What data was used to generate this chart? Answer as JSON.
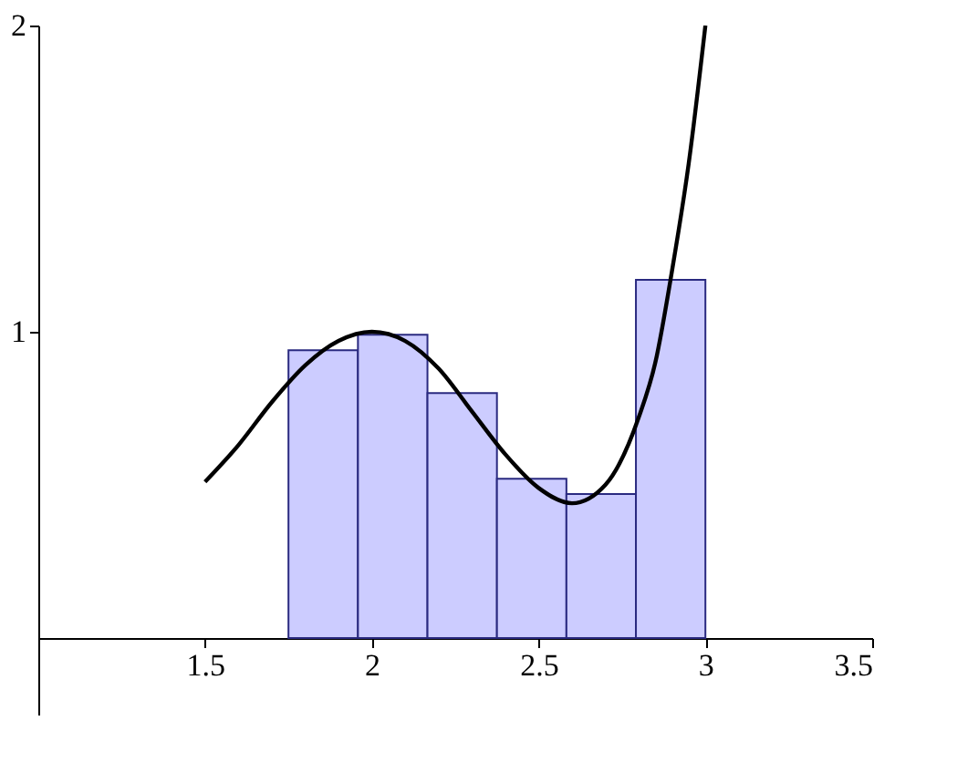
{
  "chart_data": {
    "type": "histogram",
    "bins": [
      1.75,
      1.9583,
      2.1667,
      2.375,
      2.5833,
      2.7917,
      3.0
    ],
    "values": [
      0.94,
      0.99,
      0.8,
      0.52,
      0.47,
      1.17
    ],
    "color": "#ccccff",
    "series": [
      {
        "type": "line",
        "color": "#000000",
        "x": [
          1.5,
          1.6,
          1.7,
          1.8,
          1.9,
          2.0,
          2.1,
          2.2,
          2.3,
          2.4,
          2.5,
          2.6,
          2.7,
          2.8,
          2.85,
          2.9,
          2.95,
          3.0
        ],
        "values": [
          0.51,
          0.63,
          0.77,
          0.89,
          0.97,
          1.0,
          0.97,
          0.88,
          0.74,
          0.6,
          0.49,
          0.44,
          0.5,
          0.72,
          0.9,
          1.2,
          1.55,
          2.0
        ]
      }
    ],
    "xlim": [
      1.0,
      3.5
    ],
    "ylim": [
      -0.25,
      2
    ],
    "xticks": [
      1.5,
      2,
      2.5,
      3,
      3.5
    ],
    "yticks": [
      1,
      2
    ],
    "grid": false
  }
}
